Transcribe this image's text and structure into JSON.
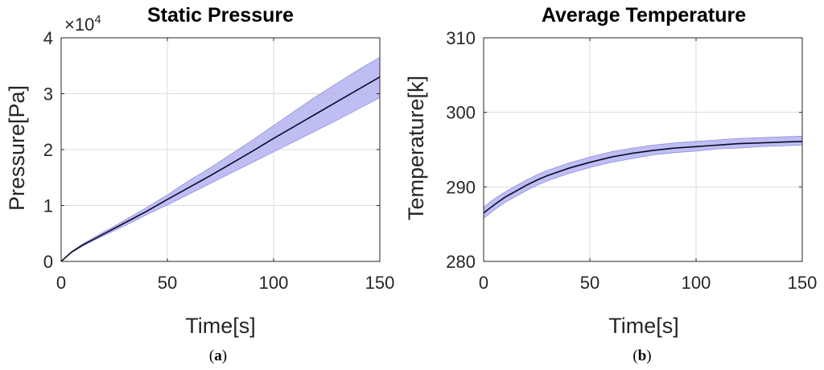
{
  "chart_data": [
    {
      "type": "line",
      "title": "Static Pressure",
      "xlabel": "Time[s]",
      "ylabel": "Pressure[Pa]",
      "xlim": [
        0,
        150
      ],
      "ylim": [
        0,
        40000
      ],
      "xticks": [
        0,
        50,
        100,
        150
      ],
      "yticks": [
        0,
        10000,
        20000,
        30000,
        40000
      ],
      "ytick_labels": [
        "0",
        "1",
        "2",
        "3",
        "4"
      ],
      "y_multiplier": {
        "base": "×10",
        "exponent": "4"
      },
      "grid": true,
      "caption": {
        "open": "(",
        "letter": "a",
        "close": ")"
      },
      "band_color": "#b3b3f0",
      "line_color": "#0a0a2a",
      "x": [
        0,
        5,
        10,
        15,
        20,
        25,
        30,
        40,
        50,
        60,
        70,
        80,
        90,
        100,
        110,
        120,
        130,
        140,
        150
      ],
      "series": [
        {
          "values": [
            0,
            1600,
            2700,
            3700,
            4600,
            5500,
            6400,
            8300,
            10100,
            12000,
            13900,
            15800,
            17700,
            19600,
            21500,
            23400,
            25300,
            27300,
            29300
          ],
          "role": "lower"
        },
        {
          "values": [
            0,
            1700,
            2900,
            3900,
            4900,
            5900,
            6900,
            8900,
            11100,
            13200,
            15300,
            17500,
            19700,
            22000,
            24200,
            26400,
            28600,
            30800,
            33000
          ],
          "role": "mean"
        },
        {
          "values": [
            0,
            1800,
            3100,
            4200,
            5300,
            6300,
            7400,
            9600,
            11900,
            14400,
            16700,
            19200,
            21700,
            24300,
            26900,
            29500,
            31900,
            34300,
            36500
          ],
          "role": "upper"
        }
      ]
    },
    {
      "type": "line",
      "title": "Average Temperature",
      "xlabel": "Time[s]",
      "ylabel": "Temperature[k]",
      "xlim": [
        0,
        150
      ],
      "ylim": [
        280,
        310
      ],
      "xticks": [
        0,
        50,
        100,
        150
      ],
      "yticks": [
        280,
        290,
        300,
        310
      ],
      "ytick_labels": [
        "280",
        "290",
        "300",
        "310"
      ],
      "grid": true,
      "caption": {
        "open": "(",
        "letter": "b",
        "close": ")"
      },
      "band_color": "#b3b3f0",
      "line_color": "#0a0a2a",
      "x": [
        0,
        5,
        10,
        15,
        20,
        25,
        30,
        40,
        50,
        60,
        70,
        80,
        90,
        100,
        110,
        120,
        130,
        140,
        150
      ],
      "series": [
        {
          "values": [
            285.8,
            286.9,
            287.9,
            288.7,
            289.5,
            290.2,
            290.8,
            291.8,
            292.6,
            293.3,
            293.8,
            294.3,
            294.6,
            294.8,
            295.1,
            295.2,
            295.4,
            295.5,
            295.6
          ],
          "role": "lower"
        },
        {
          "values": [
            286.5,
            287.6,
            288.6,
            289.4,
            290.2,
            290.9,
            291.5,
            292.5,
            293.3,
            294.0,
            294.5,
            294.9,
            295.2,
            295.4,
            295.6,
            295.8,
            295.9,
            296.0,
            296.1
          ],
          "role": "mean"
        },
        {
          "values": [
            287.3,
            288.4,
            289.3,
            290.1,
            290.9,
            291.6,
            292.2,
            293.2,
            294.0,
            294.7,
            295.2,
            295.6,
            295.9,
            296.1,
            296.3,
            296.5,
            296.6,
            296.7,
            296.8
          ],
          "role": "upper"
        }
      ]
    }
  ]
}
